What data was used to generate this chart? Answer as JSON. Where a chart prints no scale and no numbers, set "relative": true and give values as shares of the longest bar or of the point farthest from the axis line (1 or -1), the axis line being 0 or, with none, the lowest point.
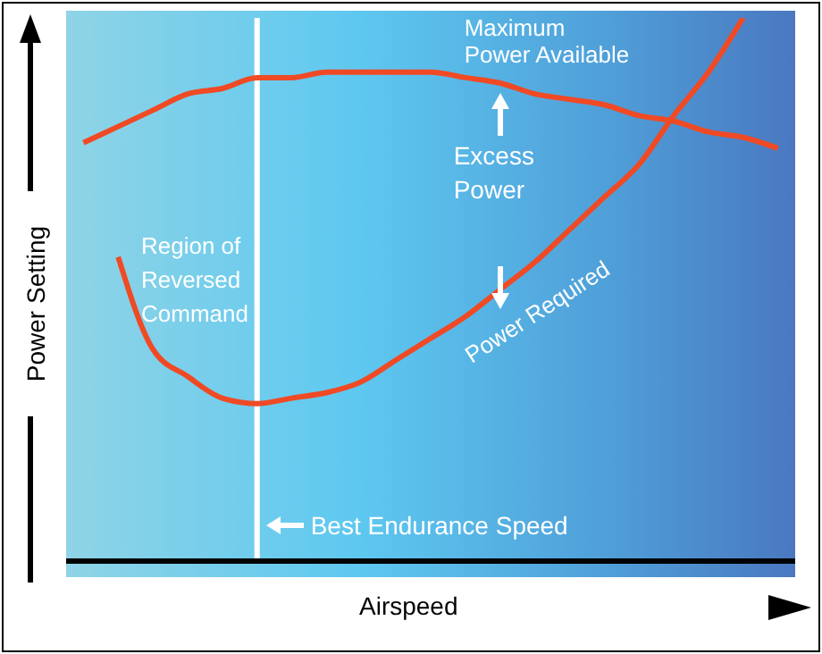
{
  "chart_data": {
    "type": "line",
    "relative": true,
    "xlabel": "Airspeed",
    "ylabel": "Power Setting",
    "categories": [
      null,
      null,
      null,
      null,
      null,
      null,
      null,
      null,
      null,
      null,
      null,
      null,
      null,
      null,
      null,
      null,
      null,
      null,
      null,
      null,
      null
    ],
    "series": [
      {
        "name": "Maximum Power Available",
        "color": "#f04a25",
        "values": [
          0.77,
          0.8,
          0.83,
          0.86,
          0.87,
          0.89,
          0.89,
          0.9,
          0.9,
          0.9,
          0.9,
          0.89,
          0.88,
          0.86,
          0.85,
          0.84,
          0.82,
          0.81,
          0.79,
          0.78,
          0.76
        ]
      },
      {
        "name": "Power Required",
        "color": "#f04a25",
        "values": [
          null,
          0.56,
          0.39,
          0.34,
          0.3,
          0.29,
          0.3,
          0.31,
          0.33,
          0.37,
          0.41,
          0.45,
          0.5,
          0.55,
          0.61,
          0.67,
          0.73,
          0.82,
          0.9,
          1,
          null
        ]
      }
    ],
    "annotations": [
      "Region of Reversed Command",
      "Excess Power",
      "Best Endurance Speed"
    ],
    "marker": "none"
  }
}
